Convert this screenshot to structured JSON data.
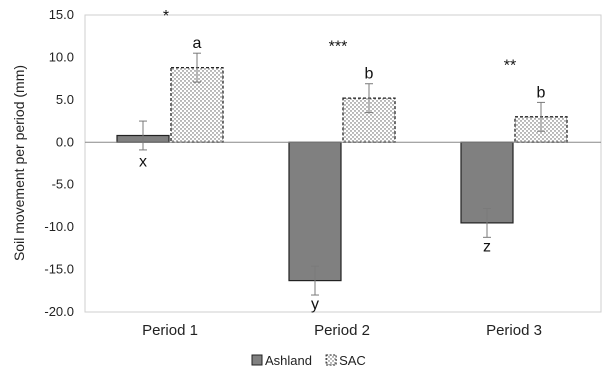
{
  "chart_data": {
    "type": "bar",
    "categories": [
      "Period 1",
      "Period 2",
      "Period 3"
    ],
    "series": [
      {
        "name": "Ashland",
        "values": [
          0.8,
          -16.3,
          -9.5
        ],
        "errors": [
          1.7,
          1.7,
          1.7
        ],
        "letters": [
          "x",
          "y",
          "z"
        ],
        "color": "#808080",
        "pattern": "solid"
      },
      {
        "name": "SAC",
        "values": [
          8.8,
          5.2,
          3.0
        ],
        "errors": [
          1.7,
          1.7,
          1.7
        ],
        "letters": [
          "a",
          "b",
          "b"
        ],
        "color": "#ffffff",
        "pattern": "dotted"
      }
    ],
    "significance": [
      "*",
      "***",
      "**"
    ],
    "title": "",
    "xlabel": "",
    "ylabel": "Soil movement per period (mm)",
    "ylim": [
      -20,
      15
    ],
    "yticks": [
      15.0,
      10.0,
      5.0,
      0.0,
      -5.0,
      -10.0,
      -15.0,
      -20.0
    ],
    "ytick_labels": [
      "15.0",
      "10.0",
      "5.0",
      "0.0",
      "-5.0",
      "-10.0",
      "-15.0",
      "-20.0"
    ],
    "grid": false,
    "legend": "bottom"
  }
}
